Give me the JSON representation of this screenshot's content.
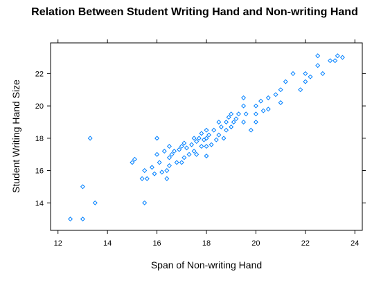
{
  "chart_data": {
    "type": "scatter",
    "title": "Relation Between Student Writing Hand and Non-writing Hand",
    "xlabel": "Span of Non-writing Hand",
    "ylabel": "Student Writing Hand Size",
    "xlim": [
      11.7,
      24.3
    ],
    "ylim": [
      12.3,
      23.9
    ],
    "xticks": [
      12,
      14,
      16,
      18,
      20,
      22,
      24
    ],
    "yticks": [
      14,
      16,
      18,
      20,
      22
    ],
    "grid": false,
    "marker": "open-diamond",
    "point_color": "#0080ff",
    "series": [
      {
        "x": [
          12.5,
          13.0,
          13.0,
          13.3,
          13.5,
          15.0,
          15.1,
          15.4,
          15.5,
          15.5,
          15.6,
          15.8,
          15.9,
          16.0,
          16.0,
          16.1,
          16.2,
          16.3,
          16.4,
          16.4,
          16.5,
          16.5,
          16.5,
          16.6,
          16.7,
          16.8,
          16.9,
          17.0,
          17.0,
          17.1,
          17.1,
          17.2,
          17.3,
          17.4,
          17.5,
          17.5,
          17.6,
          17.6,
          17.7,
          17.8,
          17.8,
          17.9,
          18.0,
          18.0,
          18.0,
          18.0,
          18.1,
          18.2,
          18.3,
          18.4,
          18.5,
          18.5,
          18.6,
          18.7,
          18.8,
          18.8,
          18.9,
          19.0,
          19.0,
          19.1,
          19.2,
          19.3,
          19.5,
          19.5,
          19.5,
          19.6,
          19.8,
          20.0,
          20.0,
          20.0,
          20.2,
          20.3,
          20.5,
          20.5,
          20.8,
          21.0,
          21.0,
          21.2,
          21.5,
          21.8,
          22.0,
          22.0,
          22.2,
          22.5,
          22.5,
          22.7,
          23.0,
          23.2,
          23.3,
          23.5
        ],
        "y": [
          13.0,
          13.0,
          15.0,
          18.0,
          14.0,
          16.5,
          16.7,
          15.5,
          14.0,
          16.0,
          15.5,
          16.2,
          15.8,
          17.0,
          18.0,
          16.5,
          15.9,
          17.2,
          16.0,
          15.5,
          16.8,
          17.5,
          16.3,
          17.0,
          17.2,
          16.5,
          17.3,
          16.5,
          17.5,
          16.8,
          17.7,
          17.4,
          17.0,
          17.6,
          17.2,
          18.0,
          17.8,
          17.0,
          18.0,
          17.5,
          18.3,
          17.9,
          17.5,
          18.0,
          18.5,
          16.9,
          18.2,
          17.6,
          18.5,
          17.9,
          19.0,
          18.2,
          18.7,
          18.0,
          19.0,
          18.5,
          19.3,
          18.7,
          19.5,
          19.0,
          19.2,
          19.5,
          19.0,
          20.0,
          20.5,
          19.5,
          18.5,
          19.5,
          20.0,
          19.0,
          20.3,
          19.7,
          20.5,
          19.8,
          20.7,
          21.0,
          20.2,
          21.5,
          22.0,
          21.0,
          21.5,
          22.0,
          21.8,
          22.5,
          23.1,
          22.0,
          22.8,
          22.8,
          23.1,
          23.0
        ]
      }
    ]
  }
}
